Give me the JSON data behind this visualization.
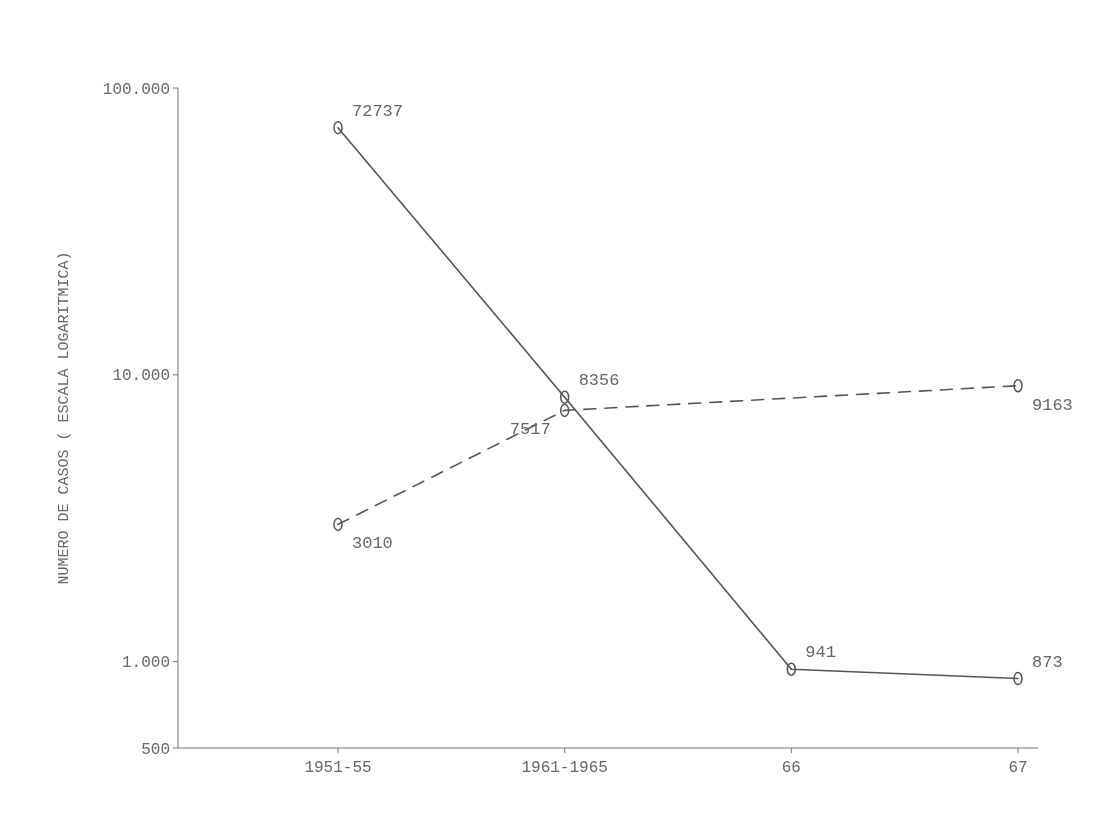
{
  "chart_data": {
    "type": "line",
    "ylabel": "NUMERO DE CASOS ( ESCALA LOGARITMICA)",
    "categories": [
      "1951-55",
      "1961-1965",
      "66",
      "67"
    ],
    "series": [
      {
        "color": "#555555",
        "line_style": "solid",
        "values": [
          72737,
          8356,
          941,
          873
        ]
      },
      {
        "color": "#555555",
        "line_style": "dashed",
        "values": [
          3010,
          7517,
          null,
          9163
        ]
      }
    ],
    "log": true,
    "ylim": [
      500,
      100000
    ],
    "yticks": [
      {
        "value": 500,
        "label": "500"
      },
      {
        "value": 1000,
        "label": "1.000"
      },
      {
        "value": 10000,
        "label": "10.000"
      },
      {
        "value": 100000,
        "label": "100.000"
      }
    ],
    "data_labels": true,
    "marker": "circle",
    "grid": false
  }
}
